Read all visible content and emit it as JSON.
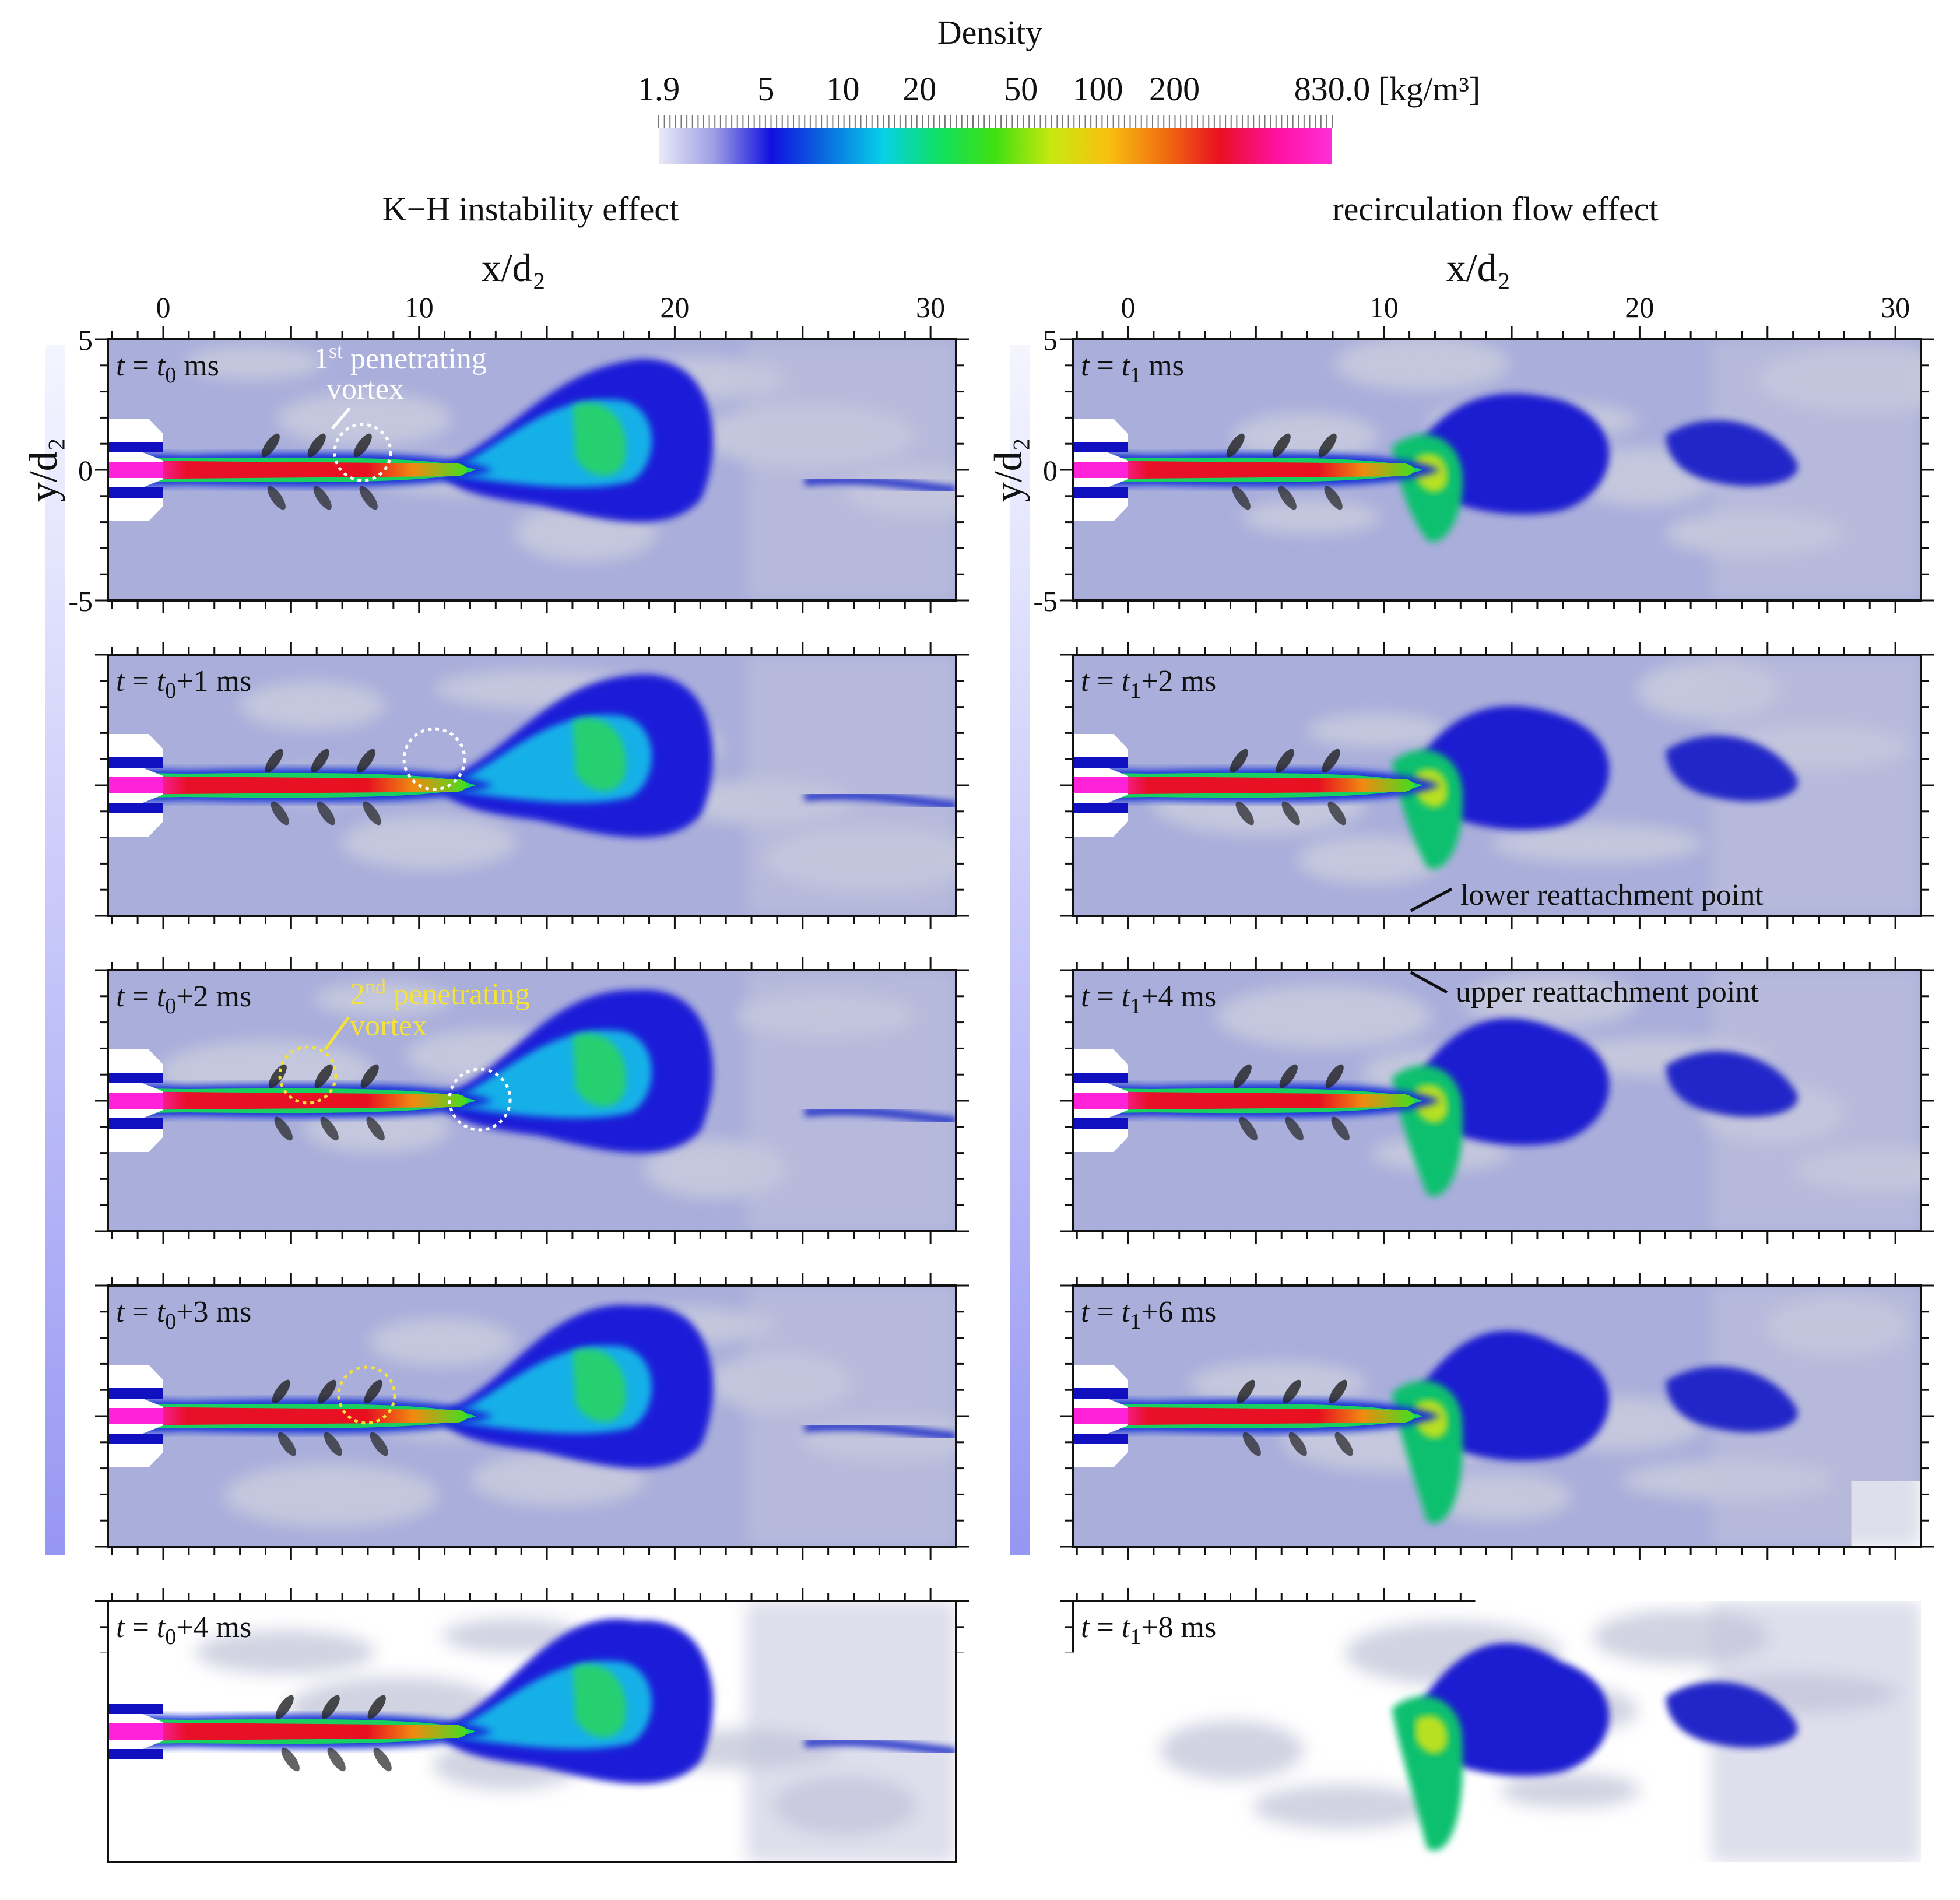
{
  "colorbar": {
    "title": "Density",
    "tick_labels": [
      "1.9",
      "5",
      "10",
      "20",
      "50",
      "100",
      "200",
      "830.0"
    ],
    "unit": "[kg/m³]",
    "stops": [
      "#e9eaf7",
      "#9c9de4",
      "#1010e0",
      "#0a6fe0",
      "#07d0e8",
      "#10e060",
      "#40e010",
      "#c8e810",
      "#f8c010",
      "#f07010",
      "#e81020",
      "#ff10a0",
      "#ff30d8"
    ]
  },
  "columns": [
    {
      "title": "K−H instability effect",
      "x_axis_label": "x/d₂",
      "y_axis_label": "y/d₂",
      "x_ticks": [
        "0",
        "10",
        "20",
        "30"
      ],
      "y_ticks": [
        "5",
        "0",
        "-5"
      ],
      "panels": [
        {
          "time": "t = t₀ ms",
          "time_parts": [
            "t",
            "=",
            "t",
            "0",
            " ms"
          ]
        },
        {
          "time": "t = t₀+1 ms",
          "time_parts": [
            "t",
            "=",
            "t",
            "0",
            "+1 ms"
          ]
        },
        {
          "time": "t = t₀+2 ms",
          "time_parts": [
            "t",
            "=",
            "t",
            "0",
            "+2 ms"
          ]
        },
        {
          "time": "t = t₀+3 ms",
          "time_parts": [
            "t",
            "=",
            "t",
            "0",
            "+3 ms"
          ]
        },
        {
          "time": "t = t₀+4 ms",
          "time_parts": [
            "t",
            "=",
            "t",
            "0",
            "+4 ms"
          ]
        }
      ]
    },
    {
      "title": "recirculation flow effect",
      "x_axis_label": "x/d₂",
      "y_axis_label": "y/d₂",
      "x_ticks": [
        "0",
        "10",
        "20",
        "30"
      ],
      "y_ticks": [
        "5",
        "0",
        "-5"
      ],
      "panels": [
        {
          "time": "t = t₁ ms",
          "time_parts": [
            "t",
            "=",
            "t",
            "1",
            " ms"
          ]
        },
        {
          "time": "t = t₁+2 ms",
          "time_parts": [
            "t",
            "=",
            "t",
            "1",
            "+2 ms"
          ]
        },
        {
          "time": "t = t₁+4 ms",
          "time_parts": [
            "t",
            "=",
            "t",
            "1",
            "+4 ms"
          ]
        },
        {
          "time": "t = t₁+6 ms",
          "time_parts": [
            "t",
            "=",
            "t",
            "1",
            "+6 ms"
          ]
        },
        {
          "time": "t = t₁+8 ms",
          "time_parts": [
            "t",
            "=",
            "t",
            "1",
            "+8 ms"
          ]
        }
      ]
    }
  ],
  "annotations": {
    "first_vortex_sup": "st",
    "first_vortex_pre": "1",
    "first_vortex_line1": "penetrating",
    "first_vortex_line2": "vortex",
    "second_vortex_pre": "2",
    "second_vortex_sup": "nd",
    "second_vortex_line1": "penetrating",
    "second_vortex_line2": "vortex",
    "lower_reattachment": "lower reattachment point",
    "upper_reattachment": "upper reattachment point"
  },
  "colors": {
    "background_flow": "#aab0dc",
    "jet_core": "#ee22c8",
    "arrow": "#8585f2",
    "first_vortex_marker": "#ffffff",
    "second_vortex_marker": "#f4e23a"
  }
}
